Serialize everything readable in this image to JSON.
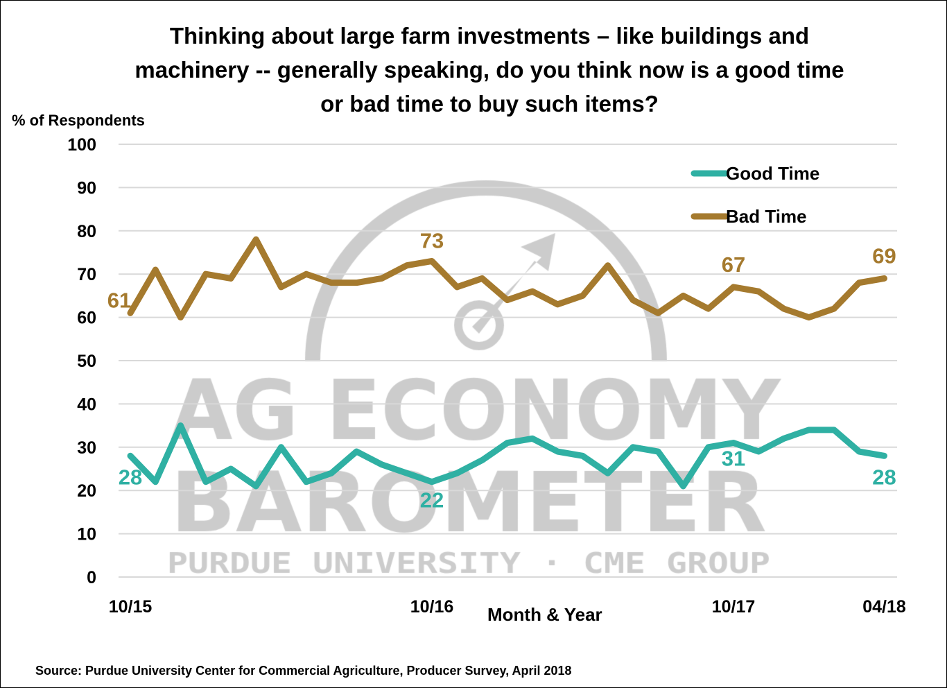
{
  "chart_data": {
    "type": "line",
    "title": "Thinking about large farm investments – like buildings and machinery -- generally speaking, do you think now is a good time or bad time to buy such items?",
    "title_lines": [
      "Thinking about large farm investments – like buildings and",
      "machinery -- generally speaking, do you think now is a good time",
      "or bad time to buy such items?"
    ],
    "ylabel": "% of Respondents",
    "xlabel": "Month & Year",
    "ylim": [
      0,
      100
    ],
    "yticks": [
      0,
      10,
      20,
      30,
      40,
      50,
      60,
      70,
      80,
      90,
      100
    ],
    "xtick_labels": [
      {
        "index": 0,
        "label": "10/15"
      },
      {
        "index": 12,
        "label": "10/16"
      },
      {
        "index": 24,
        "label": "10/17"
      },
      {
        "index": 30,
        "label": "04/18"
      }
    ],
    "grid": true,
    "legend_position": "top-right",
    "series": [
      {
        "name": "Good Time",
        "color": "#2FB0A3",
        "values": [
          28,
          22,
          35,
          22,
          25,
          21,
          30,
          22,
          24,
          29,
          26,
          24,
          22,
          24,
          27,
          31,
          32,
          29,
          28,
          24,
          30,
          29,
          21,
          30,
          31,
          29,
          32,
          34,
          34,
          29,
          28
        ],
        "data_labels": [
          {
            "index": 0,
            "text": "28"
          },
          {
            "index": 12,
            "text": "22"
          },
          {
            "index": 24,
            "text": "31"
          },
          {
            "index": 30,
            "text": "28"
          }
        ]
      },
      {
        "name": "Bad Time",
        "color": "#A57A2E",
        "values": [
          61,
          71,
          60,
          70,
          69,
          78,
          67,
          70,
          68,
          68,
          69,
          72,
          73,
          67,
          69,
          64,
          66,
          63,
          65,
          72,
          64,
          61,
          65,
          62,
          67,
          66,
          62,
          60,
          62,
          68,
          69
        ],
        "data_labels": [
          {
            "index": 0,
            "text": "61"
          },
          {
            "index": 12,
            "text": "73"
          },
          {
            "index": 24,
            "text": "67"
          },
          {
            "index": 30,
            "text": "69"
          }
        ]
      }
    ],
    "source": "Source: Purdue University Center for Commercial Agriculture, Producer Survey, April 2018"
  },
  "watermark": {
    "line1": "AG ECONOMY",
    "line2": "BAROMETER",
    "line3": "PURDUE UNIVERSITY · CME GROUP",
    "color": "#cccccc"
  }
}
